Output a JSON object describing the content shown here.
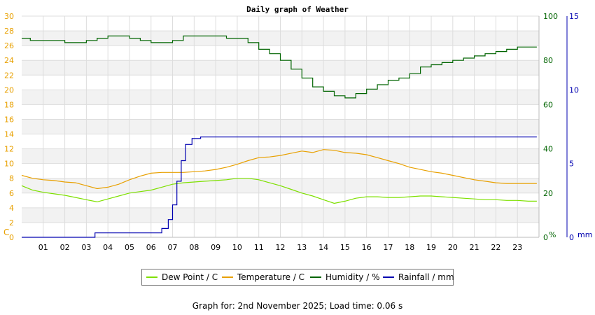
{
  "chart_data": {
    "type": "line",
    "title": "Daily graph of Weather",
    "x_tick_labels": [
      "01",
      "02",
      "03",
      "04",
      "05",
      "06",
      "07",
      "08",
      "09",
      "10",
      "11",
      "12",
      "13",
      "14",
      "15",
      "16",
      "17",
      "18",
      "19",
      "20",
      "21",
      "22",
      "23"
    ],
    "xlim": [
      0,
      24
    ],
    "left_axis": {
      "unit_label": "C",
      "ylim": [
        0,
        30
      ],
      "ticks": [
        0,
        2,
        4,
        6,
        8,
        10,
        12,
        14,
        16,
        18,
        20,
        22,
        24,
        26,
        28,
        30
      ],
      "color": "#e8a000"
    },
    "humidity_axis": {
      "unit_label": "%",
      "ylim": [
        0,
        100
      ],
      "ticks": [
        0,
        20,
        40,
        60,
        80,
        100
      ],
      "color": "#006400"
    },
    "rain_axis": {
      "unit_label": "mm",
      "ylim": [
        0,
        15
      ],
      "ticks": [
        0,
        5,
        10,
        15
      ],
      "color": "#0000b0"
    },
    "grid": true,
    "series": [
      {
        "name": "Dew Point / C",
        "axis": "left",
        "color": "#7ee000",
        "x": [
          0,
          0.5,
          1,
          1.5,
          2,
          2.5,
          3,
          3.5,
          4,
          4.5,
          5,
          5.5,
          6,
          6.5,
          7,
          7.5,
          8,
          8.5,
          9,
          9.5,
          10,
          10.5,
          11,
          11.5,
          12,
          12.5,
          13,
          13.5,
          14,
          14.5,
          15,
          15.5,
          16,
          16.5,
          17,
          17.5,
          18,
          18.5,
          19,
          19.5,
          20,
          20.5,
          21,
          21.5,
          22,
          22.5,
          23,
          23.5,
          23.9
        ],
        "y": [
          7.0,
          6.4,
          6.1,
          5.9,
          5.7,
          5.4,
          5.1,
          4.8,
          5.2,
          5.6,
          6.0,
          6.2,
          6.4,
          6.8,
          7.2,
          7.4,
          7.5,
          7.6,
          7.7,
          7.8,
          8.0,
          8.0,
          7.8,
          7.4,
          7.0,
          6.5,
          6.0,
          5.6,
          5.1,
          4.6,
          4.9,
          5.3,
          5.5,
          5.5,
          5.4,
          5.4,
          5.5,
          5.6,
          5.6,
          5.5,
          5.4,
          5.3,
          5.2,
          5.1,
          5.1,
          5.0,
          5.0,
          4.9,
          4.9
        ]
      },
      {
        "name": "Temperature / C",
        "axis": "left",
        "color": "#e8a000",
        "x": [
          0,
          0.5,
          1,
          1.5,
          2,
          2.5,
          3,
          3.5,
          4,
          4.5,
          5,
          5.5,
          6,
          6.5,
          7,
          7.5,
          8,
          8.5,
          9,
          9.5,
          10,
          10.5,
          11,
          11.5,
          12,
          12.5,
          13,
          13.5,
          14,
          14.5,
          15,
          15.5,
          16,
          16.5,
          17,
          17.5,
          18,
          18.5,
          19,
          19.5,
          20,
          20.5,
          21,
          21.5,
          22,
          22.5,
          23,
          23.5,
          23.9
        ],
        "y": [
          8.4,
          8.0,
          7.8,
          7.7,
          7.5,
          7.4,
          7.0,
          6.6,
          6.8,
          7.2,
          7.8,
          8.3,
          8.7,
          8.8,
          8.8,
          8.8,
          8.9,
          9.0,
          9.2,
          9.5,
          9.9,
          10.4,
          10.8,
          10.9,
          11.1,
          11.4,
          11.7,
          11.5,
          11.9,
          11.8,
          11.5,
          11.4,
          11.2,
          10.8,
          10.4,
          10.0,
          9.5,
          9.2,
          8.9,
          8.7,
          8.4,
          8.1,
          7.8,
          7.6,
          7.4,
          7.3,
          7.3,
          7.3,
          7.3
        ]
      },
      {
        "name": "Humidity / %",
        "axis": "humidity",
        "color": "#006400",
        "x": [
          0,
          0.4,
          1,
          1.5,
          2,
          2.5,
          3,
          3.5,
          4,
          4.5,
          5,
          5.5,
          6,
          6.5,
          7,
          7.5,
          8,
          8.5,
          9,
          9.5,
          10,
          10.5,
          11,
          11.5,
          12,
          12.5,
          13,
          13.5,
          14,
          14.5,
          15,
          15.5,
          16,
          16.5,
          17,
          17.5,
          18,
          18.5,
          19,
          19.5,
          20,
          20.5,
          21,
          21.5,
          22,
          22.5,
          23,
          23.5,
          23.9
        ],
        "y": [
          90,
          89,
          89,
          89,
          88,
          88,
          89,
          90,
          91,
          91,
          90,
          89,
          88,
          88,
          89,
          91,
          91,
          91,
          91,
          90,
          90,
          88,
          85,
          83,
          80,
          76,
          72,
          68,
          66,
          64,
          63,
          65,
          67,
          69,
          71,
          72,
          74,
          77,
          78,
          79,
          80,
          81,
          82,
          83,
          84,
          85,
          86,
          86,
          86
        ]
      },
      {
        "name": "Rainfall / mm",
        "axis": "rain",
        "color": "#0000b0",
        "x": [
          0,
          3.35,
          3.4,
          6.2,
          6.5,
          6.8,
          7.0,
          7.2,
          7.4,
          7.6,
          7.9,
          8.3,
          9.5,
          23.9
        ],
        "y": [
          0,
          0,
          0.3,
          0.3,
          0.6,
          1.2,
          2.2,
          3.8,
          5.2,
          6.3,
          6.7,
          6.8,
          6.8,
          6.8
        ]
      }
    ]
  },
  "footer": "Graph for: 2nd November 2025; Load time: 0.06 s"
}
